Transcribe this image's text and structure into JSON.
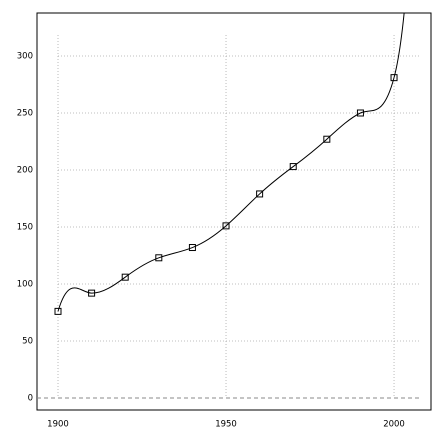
{
  "chart_data": {
    "type": "line",
    "x": [
      1900,
      1910,
      1920,
      1930,
      1940,
      1950,
      1960,
      1970,
      1980,
      1990,
      2000
    ],
    "series": [
      {
        "color": "#000000",
        "values": [
          76,
          92,
          106,
          123,
          132,
          151,
          179,
          203,
          227,
          250,
          281
        ]
      }
    ],
    "xlim": [
      1893.75,
      2011
    ],
    "ylim": [
      -10.5,
      337.7
    ],
    "xticks": [
      1900,
      1950,
      2000
    ],
    "yticks": [
      0,
      50,
      100,
      150,
      200,
      250,
      300
    ],
    "grid": true
  }
}
